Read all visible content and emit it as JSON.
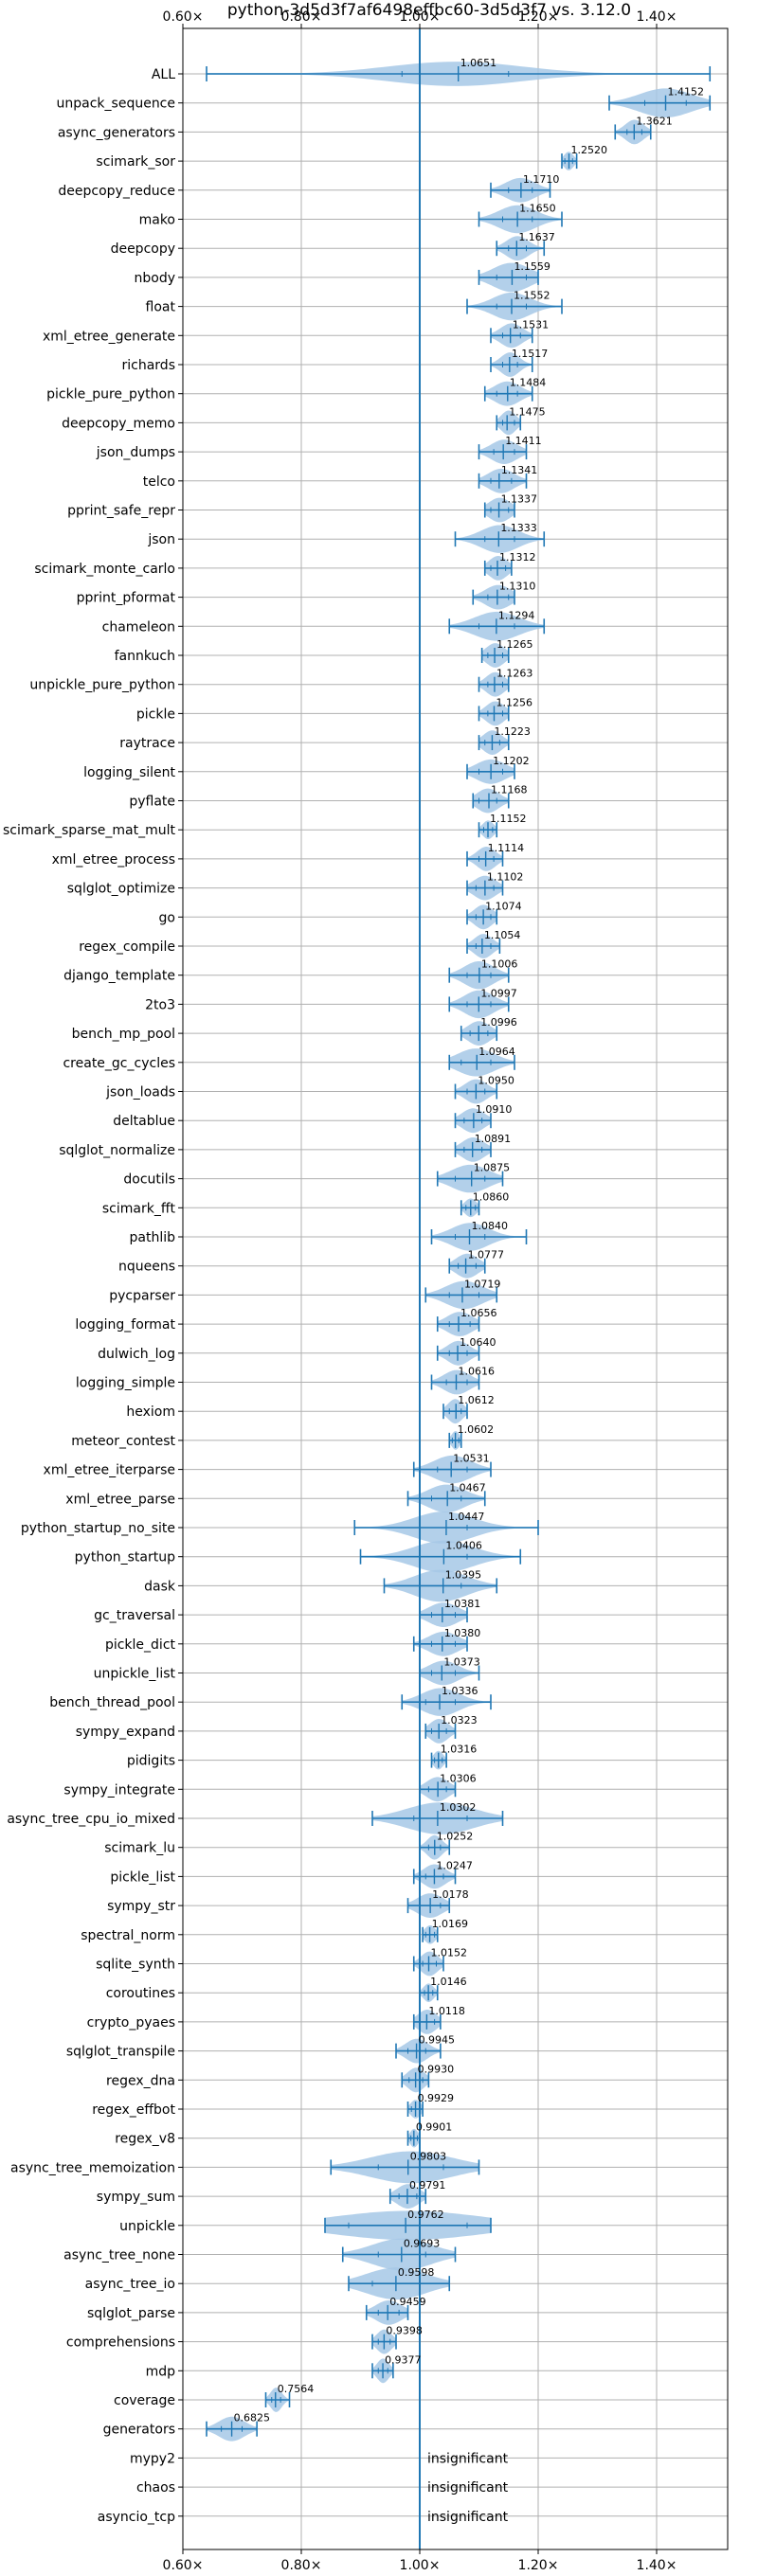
{
  "chart_data": {
    "type": "violin",
    "title": "python-3d5d3f7af6498effbc60-3d5d3f7 vs. 3.12.0",
    "xlim": [
      0.6,
      1.52
    ],
    "xticks": [
      {
        "value": 0.6,
        "label": "0.60×"
      },
      {
        "value": 0.8,
        "label": "0.80×"
      },
      {
        "value": 1.0,
        "label": "1.00×"
      },
      {
        "value": 1.2,
        "label": "1.20×"
      },
      {
        "value": 1.4,
        "label": "1.40×"
      }
    ],
    "reference_x": 1.0,
    "grid": true,
    "colors": {
      "violin": "#a6c8e6",
      "line": "#1f77b4",
      "grid": "#b0b0b0"
    },
    "benchmarks": [
      {
        "name": "ALL",
        "value": 1.0651,
        "label": "1.0651",
        "min": 0.64,
        "max": 1.49,
        "q1": 0.97,
        "q3": 1.15,
        "width": 0.42
      },
      {
        "name": "unpack_sequence",
        "value": 1.4152,
        "label": "1.4152",
        "min": 1.32,
        "max": 1.49,
        "q1": 1.38,
        "q3": 1.45,
        "width": 0.5
      },
      {
        "name": "async_generators",
        "value": 1.3621,
        "label": "1.3621",
        "min": 1.33,
        "max": 1.39,
        "q1": 1.35,
        "q3": 1.375,
        "width": 0.42
      },
      {
        "name": "scimark_sor",
        "value": 1.252,
        "label": "1.2520",
        "min": 1.24,
        "max": 1.265,
        "q1": 1.245,
        "q3": 1.258,
        "width": 0.32
      },
      {
        "name": "deepcopy_reduce",
        "value": 1.171,
        "label": "1.1710",
        "min": 1.12,
        "max": 1.22,
        "q1": 1.15,
        "q3": 1.19,
        "width": 0.42
      },
      {
        "name": "mako",
        "value": 1.165,
        "label": "1.1650",
        "min": 1.1,
        "max": 1.24,
        "q1": 1.14,
        "q3": 1.19,
        "width": 0.48
      },
      {
        "name": "deepcopy",
        "value": 1.1637,
        "label": "1.1637",
        "min": 1.13,
        "max": 1.21,
        "q1": 1.15,
        "q3": 1.18,
        "width": 0.42
      },
      {
        "name": "nbody",
        "value": 1.1559,
        "label": "1.1559",
        "min": 1.1,
        "max": 1.2,
        "q1": 1.13,
        "q3": 1.18,
        "width": 0.5
      },
      {
        "name": "float",
        "value": 1.1552,
        "label": "1.1552",
        "min": 1.08,
        "max": 1.24,
        "q1": 1.13,
        "q3": 1.18,
        "width": 0.48
      },
      {
        "name": "xml_etree_generate",
        "value": 1.1531,
        "label": "1.1531",
        "min": 1.12,
        "max": 1.19,
        "q1": 1.14,
        "q3": 1.17,
        "width": 0.42
      },
      {
        "name": "richards",
        "value": 1.1517,
        "label": "1.1517",
        "min": 1.12,
        "max": 1.19,
        "q1": 1.14,
        "q3": 1.165,
        "width": 0.42
      },
      {
        "name": "pickle_pure_python",
        "value": 1.1484,
        "label": "1.1484",
        "min": 1.11,
        "max": 1.19,
        "q1": 1.13,
        "q3": 1.165,
        "width": 0.42
      },
      {
        "name": "deepcopy_memo",
        "value": 1.1475,
        "label": "1.1475",
        "min": 1.13,
        "max": 1.17,
        "q1": 1.14,
        "q3": 1.16,
        "width": 0.42
      },
      {
        "name": "json_dumps",
        "value": 1.1411,
        "label": "1.1411",
        "min": 1.1,
        "max": 1.18,
        "q1": 1.125,
        "q3": 1.16,
        "width": 0.42
      },
      {
        "name": "telco",
        "value": 1.1341,
        "label": "1.1341",
        "min": 1.1,
        "max": 1.18,
        "q1": 1.12,
        "q3": 1.155,
        "width": 0.42
      },
      {
        "name": "pprint_safe_repr",
        "value": 1.1337,
        "label": "1.1337",
        "min": 1.11,
        "max": 1.16,
        "q1": 1.12,
        "q3": 1.15,
        "width": 0.42
      },
      {
        "name": "json",
        "value": 1.1333,
        "label": "1.1333",
        "min": 1.06,
        "max": 1.21,
        "q1": 1.11,
        "q3": 1.16,
        "width": 0.48
      },
      {
        "name": "scimark_monte_carlo",
        "value": 1.1312,
        "label": "1.1312",
        "min": 1.11,
        "max": 1.155,
        "q1": 1.12,
        "q3": 1.145,
        "width": 0.42
      },
      {
        "name": "pprint_pformat",
        "value": 1.131,
        "label": "1.1310",
        "min": 1.09,
        "max": 1.16,
        "q1": 1.115,
        "q3": 1.15,
        "width": 0.42
      },
      {
        "name": "chameleon",
        "value": 1.1294,
        "label": "1.1294",
        "min": 1.05,
        "max": 1.21,
        "q1": 1.1,
        "q3": 1.16,
        "width": 0.5
      },
      {
        "name": "fannkuch",
        "value": 1.1265,
        "label": "1.1265",
        "min": 1.105,
        "max": 1.15,
        "q1": 1.115,
        "q3": 1.14,
        "width": 0.42
      },
      {
        "name": "unpickle_pure_python",
        "value": 1.1263,
        "label": "1.1263",
        "min": 1.1,
        "max": 1.15,
        "q1": 1.115,
        "q3": 1.14,
        "width": 0.42
      },
      {
        "name": "pickle",
        "value": 1.1256,
        "label": "1.1256",
        "min": 1.1,
        "max": 1.15,
        "q1": 1.115,
        "q3": 1.14,
        "width": 0.42
      },
      {
        "name": "raytrace",
        "value": 1.1223,
        "label": "1.1223",
        "min": 1.1,
        "max": 1.15,
        "q1": 1.11,
        "q3": 1.135,
        "width": 0.42
      },
      {
        "name": "logging_silent",
        "value": 1.1202,
        "label": "1.1202",
        "min": 1.08,
        "max": 1.16,
        "q1": 1.1,
        "q3": 1.14,
        "width": 0.42
      },
      {
        "name": "pyflate",
        "value": 1.1168,
        "label": "1.1168",
        "min": 1.09,
        "max": 1.15,
        "q1": 1.1,
        "q3": 1.13,
        "width": 0.42
      },
      {
        "name": "scimark_sparse_mat_mult",
        "value": 1.1152,
        "label": "1.1152",
        "min": 1.1,
        "max": 1.13,
        "q1": 1.108,
        "q3": 1.123,
        "width": 0.32
      },
      {
        "name": "xml_etree_process",
        "value": 1.1114,
        "label": "1.1114",
        "min": 1.08,
        "max": 1.14,
        "q1": 1.1,
        "q3": 1.125,
        "width": 0.42
      },
      {
        "name": "sqlglot_optimize",
        "value": 1.1102,
        "label": "1.1102",
        "min": 1.08,
        "max": 1.14,
        "q1": 1.095,
        "q3": 1.125,
        "width": 0.42
      },
      {
        "name": "go",
        "value": 1.1074,
        "label": "1.1074",
        "min": 1.08,
        "max": 1.13,
        "q1": 1.095,
        "q3": 1.12,
        "width": 0.42
      },
      {
        "name": "regex_compile",
        "value": 1.1054,
        "label": "1.1054",
        "min": 1.08,
        "max": 1.135,
        "q1": 1.095,
        "q3": 1.12,
        "width": 0.42
      },
      {
        "name": "django_template",
        "value": 1.1006,
        "label": "1.1006",
        "min": 1.05,
        "max": 1.15,
        "q1": 1.08,
        "q3": 1.12,
        "width": 0.48
      },
      {
        "name": "2to3",
        "value": 1.0997,
        "label": "1.0997",
        "min": 1.05,
        "max": 1.15,
        "q1": 1.08,
        "q3": 1.12,
        "width": 0.48
      },
      {
        "name": "bench_mp_pool",
        "value": 1.0996,
        "label": "1.0996",
        "min": 1.07,
        "max": 1.13,
        "q1": 1.085,
        "q3": 1.115,
        "width": 0.42
      },
      {
        "name": "create_gc_cycles",
        "value": 1.0964,
        "label": "1.0964",
        "min": 1.05,
        "max": 1.16,
        "q1": 1.07,
        "q3": 1.12,
        "width": 0.48
      },
      {
        "name": "json_loads",
        "value": 1.095,
        "label": "1.0950",
        "min": 1.06,
        "max": 1.13,
        "q1": 1.08,
        "q3": 1.11,
        "width": 0.42
      },
      {
        "name": "deltablue",
        "value": 1.091,
        "label": "1.0910",
        "min": 1.06,
        "max": 1.12,
        "q1": 1.075,
        "q3": 1.105,
        "width": 0.42
      },
      {
        "name": "sqlglot_normalize",
        "value": 1.0891,
        "label": "1.0891",
        "min": 1.06,
        "max": 1.12,
        "q1": 1.075,
        "q3": 1.105,
        "width": 0.42
      },
      {
        "name": "docutils",
        "value": 1.0875,
        "label": "1.0875",
        "min": 1.03,
        "max": 1.14,
        "q1": 1.06,
        "q3": 1.11,
        "width": 0.48
      },
      {
        "name": "scimark_fft",
        "value": 1.086,
        "label": "1.0860",
        "min": 1.07,
        "max": 1.1,
        "q1": 1.078,
        "q3": 1.094,
        "width": 0.32
      },
      {
        "name": "pathlib",
        "value": 1.084,
        "label": "1.0840",
        "min": 1.02,
        "max": 1.18,
        "q1": 1.06,
        "q3": 1.11,
        "width": 0.48
      },
      {
        "name": "nqueens",
        "value": 1.0777,
        "label": "1.0777",
        "min": 1.05,
        "max": 1.11,
        "q1": 1.065,
        "q3": 1.095,
        "width": 0.42
      },
      {
        "name": "pycparser",
        "value": 1.0719,
        "label": "1.0719",
        "min": 1.01,
        "max": 1.13,
        "q1": 1.05,
        "q3": 1.1,
        "width": 0.48
      },
      {
        "name": "logging_format",
        "value": 1.0656,
        "label": "1.0656",
        "min": 1.03,
        "max": 1.1,
        "q1": 1.05,
        "q3": 1.085,
        "width": 0.42
      },
      {
        "name": "dulwich_log",
        "value": 1.064,
        "label": "1.0640",
        "min": 1.03,
        "max": 1.1,
        "q1": 1.05,
        "q3": 1.08,
        "width": 0.42
      },
      {
        "name": "logging_simple",
        "value": 1.0616,
        "label": "1.0616",
        "min": 1.02,
        "max": 1.1,
        "q1": 1.045,
        "q3": 1.08,
        "width": 0.42
      },
      {
        "name": "hexiom",
        "value": 1.0612,
        "label": "1.0612",
        "min": 1.04,
        "max": 1.08,
        "q1": 1.05,
        "q3": 1.07,
        "width": 0.42
      },
      {
        "name": "meteor_contest",
        "value": 1.0602,
        "label": "1.0602",
        "min": 1.05,
        "max": 1.07,
        "q1": 1.055,
        "q3": 1.066,
        "width": 0.32
      },
      {
        "name": "xml_etree_iterparse",
        "value": 1.0531,
        "label": "1.0531",
        "min": 0.99,
        "max": 1.12,
        "q1": 1.03,
        "q3": 1.08,
        "width": 0.48
      },
      {
        "name": "xml_etree_parse",
        "value": 1.0467,
        "label": "1.0467",
        "min": 0.98,
        "max": 1.11,
        "q1": 1.02,
        "q3": 1.07,
        "width": 0.48
      },
      {
        "name": "python_startup_no_site",
        "value": 1.0447,
        "label": "1.0447",
        "min": 0.89,
        "max": 1.2,
        "q1": 1.0,
        "q3": 1.08,
        "width": 0.55
      },
      {
        "name": "python_startup",
        "value": 1.0406,
        "label": "1.0406",
        "min": 0.9,
        "max": 1.17,
        "q1": 1.0,
        "q3": 1.08,
        "width": 0.55
      },
      {
        "name": "dask",
        "value": 1.0395,
        "label": "1.0395",
        "min": 0.94,
        "max": 1.13,
        "q1": 1.0,
        "q3": 1.07,
        "width": 0.55
      },
      {
        "name": "gc_traversal",
        "value": 1.0381,
        "label": "1.0381",
        "min": 1.0,
        "max": 1.08,
        "q1": 1.02,
        "q3": 1.06,
        "width": 0.42
      },
      {
        "name": "pickle_dict",
        "value": 1.038,
        "label": "1.0380",
        "min": 0.99,
        "max": 1.08,
        "q1": 1.02,
        "q3": 1.06,
        "width": 0.42
      },
      {
        "name": "unpickle_list",
        "value": 1.0373,
        "label": "1.0373",
        "min": 1.0,
        "max": 1.1,
        "q1": 1.02,
        "q3": 1.06,
        "width": 0.42
      },
      {
        "name": "bench_thread_pool",
        "value": 1.0336,
        "label": "1.0336",
        "min": 0.97,
        "max": 1.12,
        "q1": 1.01,
        "q3": 1.06,
        "width": 0.48
      },
      {
        "name": "sympy_expand",
        "value": 1.0323,
        "label": "1.0323",
        "min": 1.01,
        "max": 1.06,
        "q1": 1.02,
        "q3": 1.045,
        "width": 0.42
      },
      {
        "name": "pidigits",
        "value": 1.0316,
        "label": "1.0316",
        "min": 1.02,
        "max": 1.045,
        "q1": 1.025,
        "q3": 1.038,
        "width": 0.32
      },
      {
        "name": "sympy_integrate",
        "value": 1.0306,
        "label": "1.0306",
        "min": 1.0,
        "max": 1.06,
        "q1": 1.015,
        "q3": 1.045,
        "width": 0.42
      },
      {
        "name": "async_tree_cpu_io_mixed",
        "value": 1.0302,
        "label": "1.0302",
        "min": 0.92,
        "max": 1.14,
        "q1": 0.99,
        "q3": 1.08,
        "width": 0.55
      },
      {
        "name": "scimark_lu",
        "value": 1.0252,
        "label": "1.0252",
        "min": 1.0,
        "max": 1.05,
        "q1": 1.015,
        "q3": 1.035,
        "width": 0.42
      },
      {
        "name": "pickle_list",
        "value": 1.0247,
        "label": "1.0247",
        "min": 0.99,
        "max": 1.06,
        "q1": 1.01,
        "q3": 1.04,
        "width": 0.42
      },
      {
        "name": "sympy_str",
        "value": 1.0178,
        "label": "1.0178",
        "min": 0.98,
        "max": 1.05,
        "q1": 1.0,
        "q3": 1.035,
        "width": 0.42
      },
      {
        "name": "spectral_norm",
        "value": 1.0169,
        "label": "1.0169",
        "min": 1.005,
        "max": 1.03,
        "q1": 1.01,
        "q3": 1.025,
        "width": 0.32
      },
      {
        "name": "sqlite_synth",
        "value": 1.0152,
        "label": "1.0152",
        "min": 0.99,
        "max": 1.04,
        "q1": 1.005,
        "q3": 1.028,
        "width": 0.42
      },
      {
        "name": "coroutines",
        "value": 1.0146,
        "label": "1.0146",
        "min": 1.0,
        "max": 1.03,
        "q1": 1.008,
        "q3": 1.022,
        "width": 0.32
      },
      {
        "name": "crypto_pyaes",
        "value": 1.0118,
        "label": "1.0118",
        "min": 0.99,
        "max": 1.035,
        "q1": 1.0,
        "q3": 1.025,
        "width": 0.42
      },
      {
        "name": "sqlglot_transpile",
        "value": 0.9945,
        "label": "0.9945",
        "min": 0.96,
        "max": 1.035,
        "q1": 0.98,
        "q3": 1.01,
        "width": 0.42
      },
      {
        "name": "regex_dna",
        "value": 0.993,
        "label": "0.9930",
        "min": 0.97,
        "max": 1.015,
        "q1": 0.982,
        "q3": 1.005,
        "width": 0.42
      },
      {
        "name": "regex_effbot",
        "value": 0.9929,
        "label": "0.9929",
        "min": 0.98,
        "max": 1.005,
        "q1": 0.986,
        "q3": 1.0,
        "width": 0.32
      },
      {
        "name": "regex_v8",
        "value": 0.9901,
        "label": "0.9901",
        "min": 0.98,
        "max": 1.0,
        "q1": 0.985,
        "q3": 0.996,
        "width": 0.32
      },
      {
        "name": "async_tree_memoization",
        "value": 0.9803,
        "label": "0.9803",
        "min": 0.85,
        "max": 1.1,
        "q1": 0.93,
        "q3": 1.04,
        "width": 0.55
      },
      {
        "name": "sympy_sum",
        "value": 0.9791,
        "label": "0.9791",
        "min": 0.95,
        "max": 1.01,
        "q1": 0.965,
        "q3": 0.995,
        "width": 0.42
      },
      {
        "name": "unpickle",
        "value": 0.9762,
        "label": "0.9762",
        "min": 0.84,
        "max": 1.12,
        "q1": 0.88,
        "q3": 1.08,
        "width": 0.5
      },
      {
        "name": "async_tree_none",
        "value": 0.9693,
        "label": "0.9693",
        "min": 0.87,
        "max": 1.06,
        "q1": 0.93,
        "q3": 1.01,
        "width": 0.55
      },
      {
        "name": "async_tree_io",
        "value": 0.9598,
        "label": "0.9598",
        "min": 0.88,
        "max": 1.05,
        "q1": 0.92,
        "q3": 1.0,
        "width": 0.55
      },
      {
        "name": "sqlglot_parse",
        "value": 0.9459,
        "label": "0.9459",
        "min": 0.91,
        "max": 0.98,
        "q1": 0.93,
        "q3": 0.965,
        "width": 0.42
      },
      {
        "name": "comprehensions",
        "value": 0.9398,
        "label": "0.9398",
        "min": 0.92,
        "max": 0.96,
        "q1": 0.93,
        "q3": 0.95,
        "width": 0.42
      },
      {
        "name": "mdp",
        "value": 0.9377,
        "label": "0.9377",
        "min": 0.92,
        "max": 0.955,
        "q1": 0.93,
        "q3": 0.946,
        "width": 0.42
      },
      {
        "name": "coverage",
        "value": 0.7564,
        "label": "0.7564",
        "min": 0.74,
        "max": 0.78,
        "q1": 0.75,
        "q3": 0.765,
        "width": 0.42
      },
      {
        "name": "generators",
        "value": 0.6825,
        "label": "0.6825",
        "min": 0.64,
        "max": 0.725,
        "q1": 0.665,
        "q3": 0.7,
        "width": 0.42
      },
      {
        "name": "mypy2",
        "insignificant": true,
        "label": "insignificant"
      },
      {
        "name": "chaos",
        "insignificant": true,
        "label": "insignificant"
      },
      {
        "name": "asyncio_tcp",
        "insignificant": true,
        "label": "insignificant"
      }
    ]
  }
}
